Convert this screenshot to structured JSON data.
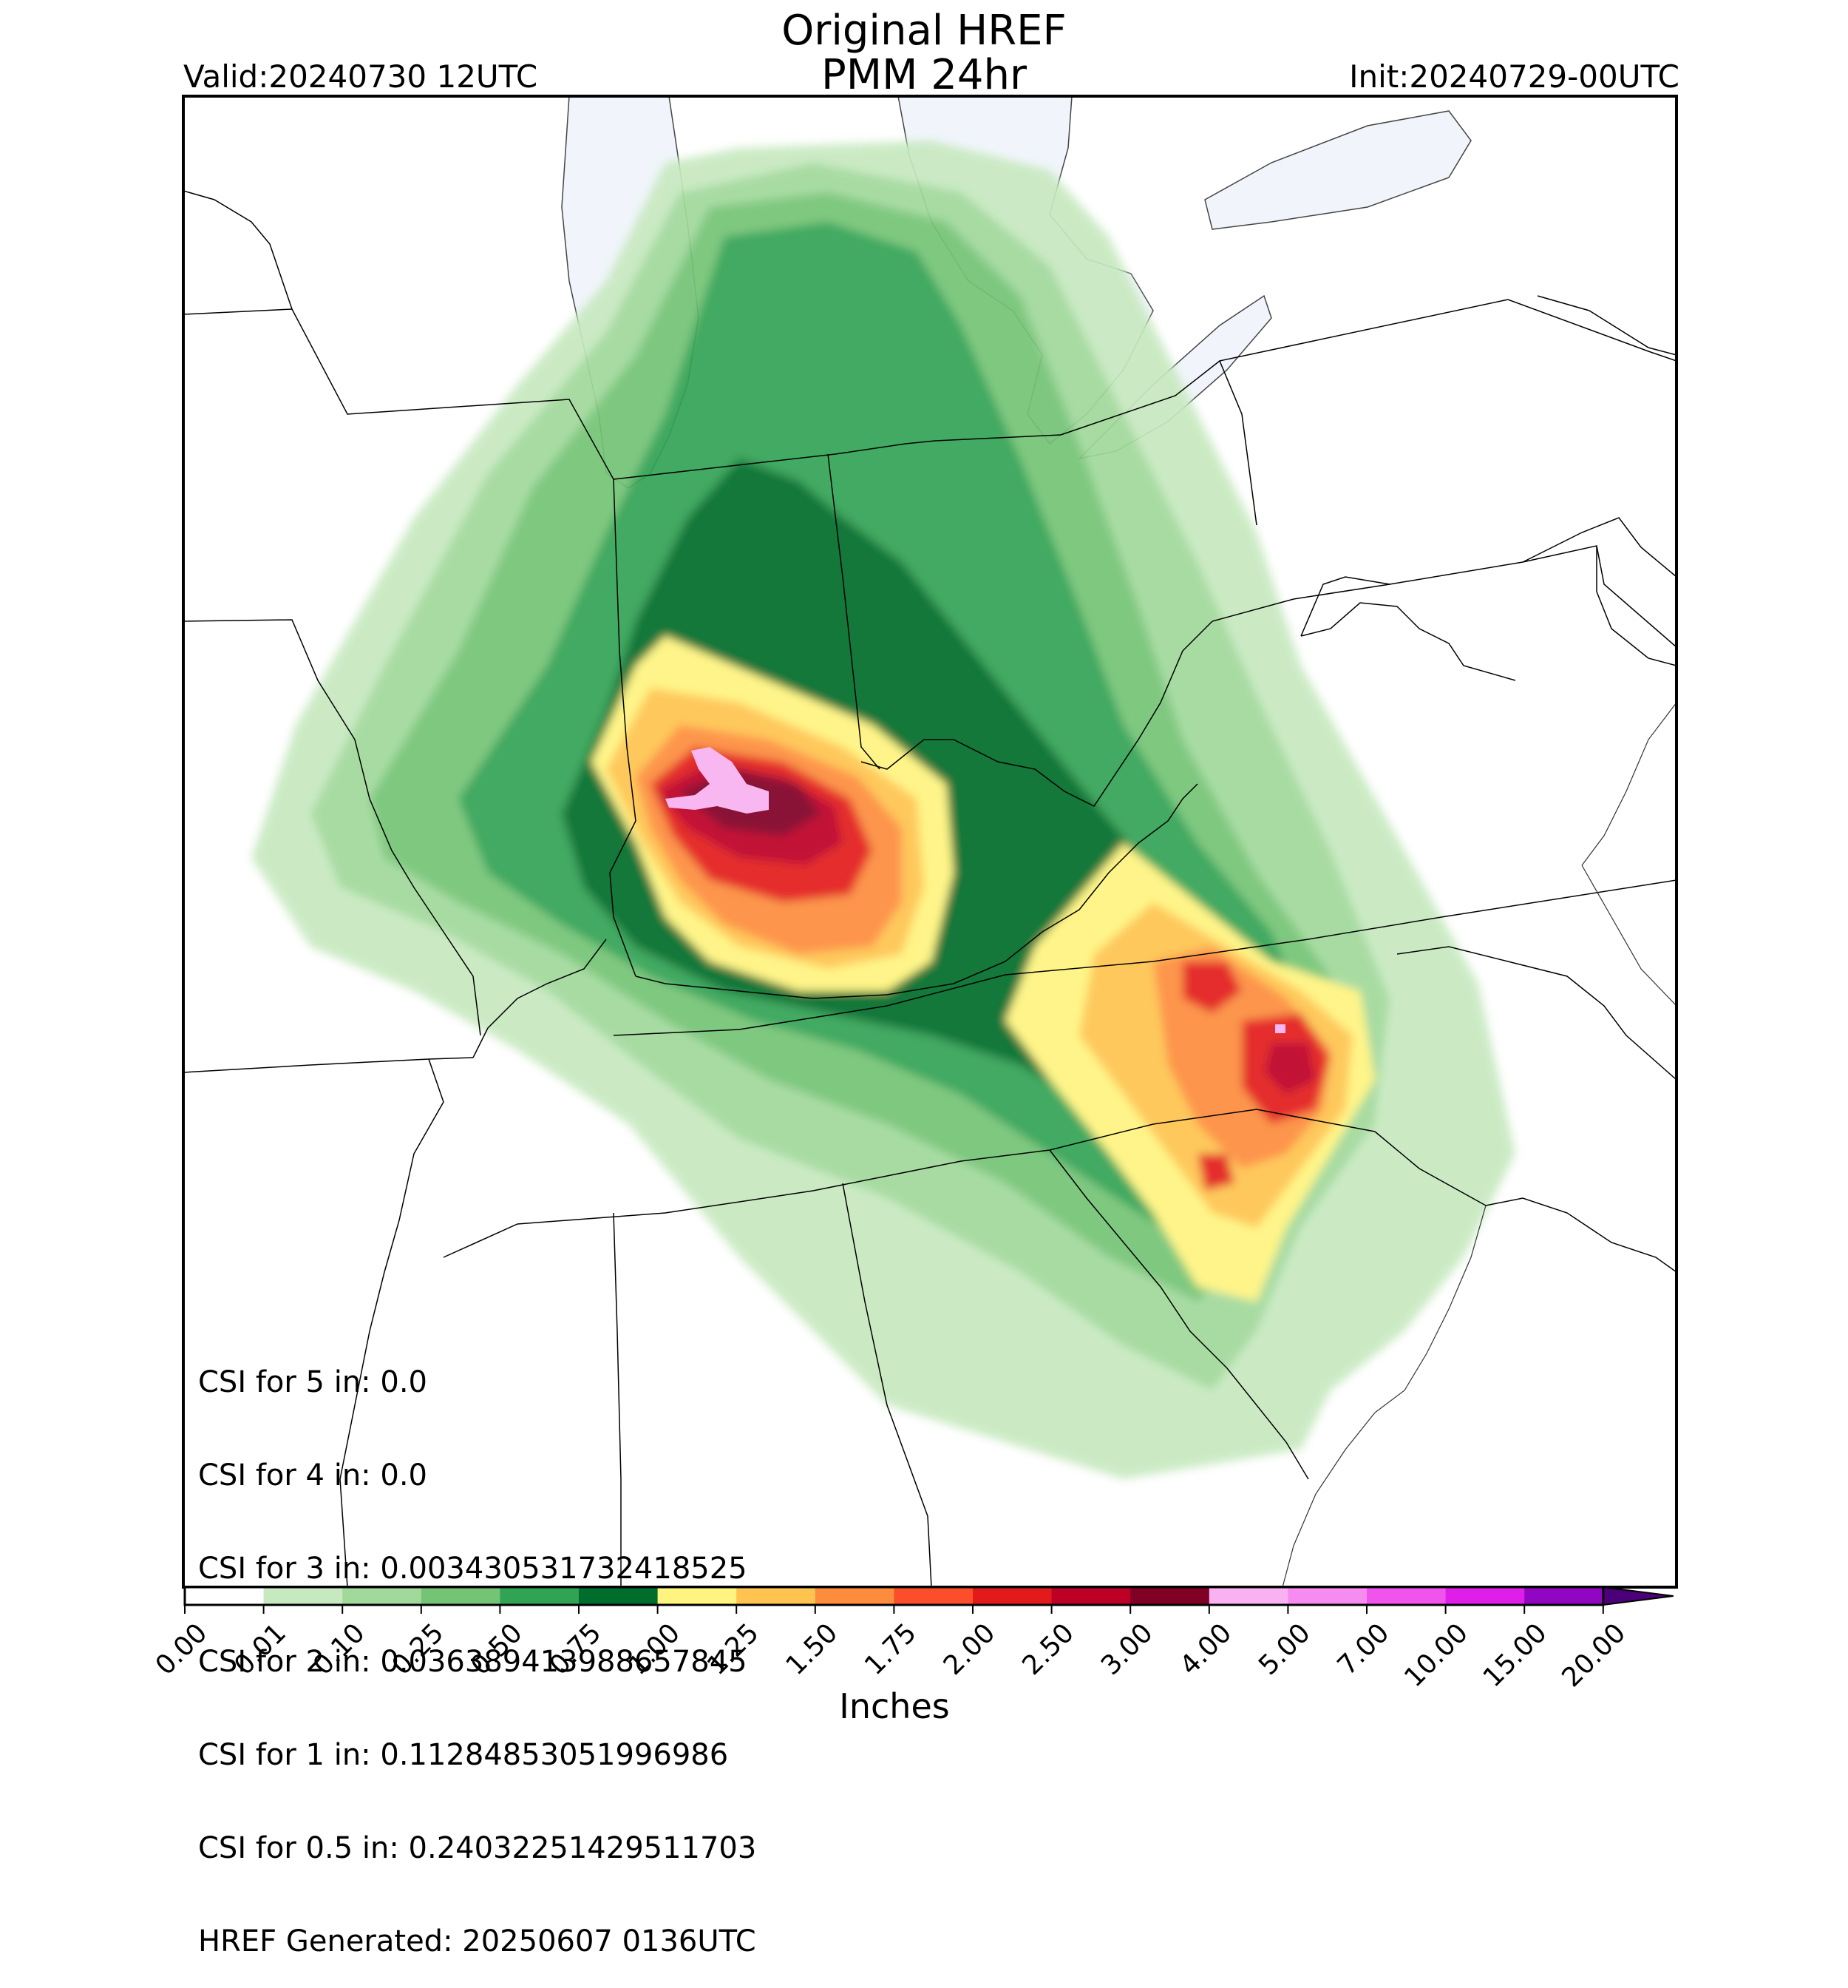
{
  "header": {
    "title_line1": "Original HREF",
    "title_line2": "PMM 24hr",
    "valid": "Valid:20240730 12UTC",
    "init": "Init:20240729-00UTC"
  },
  "stats": {
    "lines": [
      "CSI for 5 in: 0.0",
      "CSI for 4 in: 0.0",
      "CSI for 3 in: 0.003430531732418525",
      "CSI for 2 in: 0.036389413988657845",
      "CSI for 1 in: 0.11284853051996986",
      "CSI for 0.5 in: 0.24032251429511703",
      "HREF Generated: 20250607 0136UTC"
    ]
  },
  "colorbar": {
    "unit_label": "Inches",
    "ticks": [
      "0.00",
      "0.01",
      "0.10",
      "0.25",
      "0.50",
      "0.75",
      "1.00",
      "1.25",
      "1.50",
      "1.75",
      "2.00",
      "2.50",
      "3.00",
      "4.00",
      "5.00",
      "7.00",
      "10.00",
      "15.00",
      "20.00"
    ],
    "colors": [
      "#ffffff",
      "#c7e9c0",
      "#a1d99b",
      "#74c476",
      "#31a354",
      "#006d2c",
      "#fff47f",
      "#fec44f",
      "#fd8d3c",
      "#fc4e2a",
      "#e31a1c",
      "#bd0026",
      "#800026",
      "#f9b1f1",
      "#f68cf0",
      "#f154ed",
      "#df1ee9",
      "#9006c2"
    ],
    "extend_color": "#4b0079"
  },
  "map": {
    "lake_color": "#f1f5fb",
    "border_color": "#000000"
  }
}
